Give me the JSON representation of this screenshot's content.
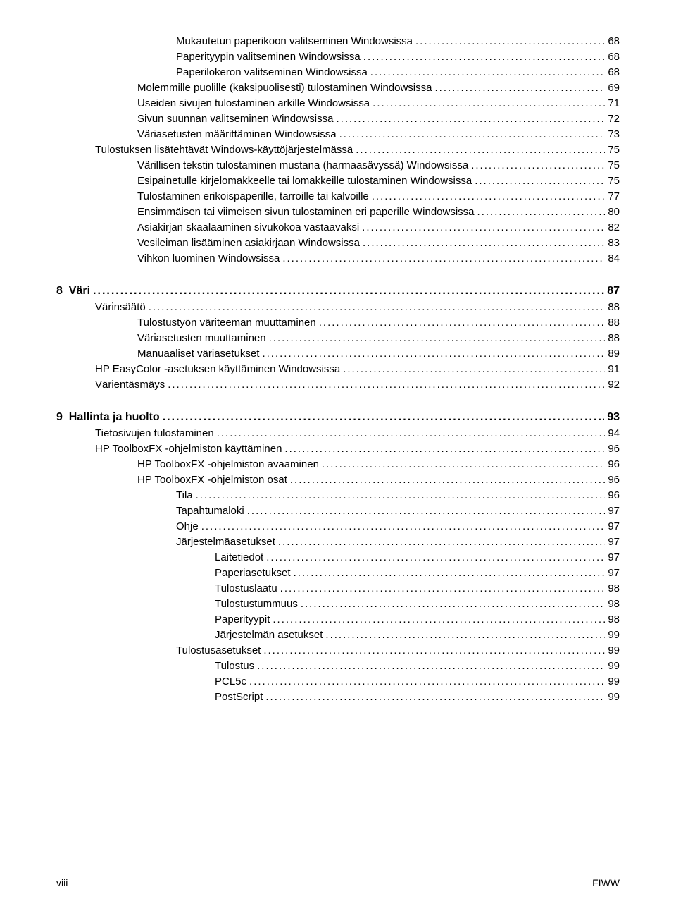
{
  "entries": [
    {
      "label": "Mukautetun paperikoon valitseminen Windowsissa",
      "page": "68",
      "indent": 3
    },
    {
      "label": "Paperityypin valitseminen Windowsissa",
      "page": "68",
      "indent": 3
    },
    {
      "label": "Paperilokeron valitseminen Windowsissa",
      "page": "68",
      "indent": 3
    },
    {
      "label": "Molemmille puolille (kaksipuolisesti) tulostaminen Windowsissa",
      "page": "69",
      "indent": 2
    },
    {
      "label": "Useiden sivujen tulostaminen arkille Windowsissa",
      "page": "71",
      "indent": 2
    },
    {
      "label": "Sivun suunnan valitseminen Windowsissa",
      "page": "72",
      "indent": 2
    },
    {
      "label": "Väriasetusten määrittäminen Windowsissa",
      "page": "73",
      "indent": 2
    },
    {
      "label": "Tulostuksen lisätehtävät Windows-käyttöjärjestelmässä",
      "page": "75",
      "indent": 1
    },
    {
      "label": "Värillisen tekstin tulostaminen mustana (harmaasävyssä) Windowsissa",
      "page": "75",
      "indent": 2
    },
    {
      "label": "Esipainetulle kirjelomakkeelle tai lomakkeille tulostaminen Windowsissa",
      "page": "75",
      "indent": 2
    },
    {
      "label": "Tulostaminen erikoispaperille, tarroille tai kalvoille",
      "page": "77",
      "indent": 2
    },
    {
      "label": "Ensimmäisen tai viimeisen sivun tulostaminen eri paperille Windowsissa",
      "page": "80",
      "indent": 2
    },
    {
      "label": "Asiakirjan skaalaaminen sivukokoa vastaavaksi",
      "page": "82",
      "indent": 2
    },
    {
      "label": "Vesileiman lisääminen asiakirjaan Windowsissa",
      "page": "83",
      "indent": 2
    },
    {
      "label": "Vihkon luominen Windowsissa",
      "page": "84",
      "indent": 2
    }
  ],
  "chapter8": {
    "number": "8",
    "title": "Väri",
    "page": "87"
  },
  "entries8": [
    {
      "label": "Värinsäätö",
      "page": "88",
      "indent": 1
    },
    {
      "label": "Tulostustyön väriteeman muuttaminen",
      "page": "88",
      "indent": 2
    },
    {
      "label": "Väriasetusten muuttaminen",
      "page": "88",
      "indent": 2
    },
    {
      "label": "Manuaaliset väriasetukset",
      "page": "89",
      "indent": 2
    },
    {
      "label": "HP EasyColor -asetuksen käyttäminen Windowsissa",
      "page": "91",
      "indent": 1
    },
    {
      "label": "Värientäsmäys",
      "page": "92",
      "indent": 1
    }
  ],
  "chapter9": {
    "number": "9",
    "title": "Hallinta ja huolto",
    "page": "93"
  },
  "entries9": [
    {
      "label": "Tietosivujen tulostaminen",
      "page": "94",
      "indent": 1
    },
    {
      "label": "HP ToolboxFX -ohjelmiston käyttäminen",
      "page": "96",
      "indent": 1
    },
    {
      "label": "HP ToolboxFX -ohjelmiston avaaminen",
      "page": "96",
      "indent": 2
    },
    {
      "label": "HP ToolboxFX -ohjelmiston osat",
      "page": "96",
      "indent": 2
    },
    {
      "label": "Tila",
      "page": "96",
      "indent": 3
    },
    {
      "label": "Tapahtumaloki",
      "page": "97",
      "indent": 3
    },
    {
      "label": "Ohje",
      "page": "97",
      "indent": 3
    },
    {
      "label": "Järjestelmäasetukset",
      "page": "97",
      "indent": 3
    },
    {
      "label": "Laitetiedot",
      "page": "97",
      "indent": 4
    },
    {
      "label": "Paperiasetukset",
      "page": "97",
      "indent": 4
    },
    {
      "label": "Tulostuslaatu",
      "page": "98",
      "indent": 4
    },
    {
      "label": "Tulostustummuus",
      "page": "98",
      "indent": 4
    },
    {
      "label": "Paperityypit",
      "page": "98",
      "indent": 4
    },
    {
      "label": "Järjestelmän asetukset",
      "page": "99",
      "indent": 4
    },
    {
      "label": "Tulostusasetukset",
      "page": "99",
      "indent": 3
    },
    {
      "label": "Tulostus",
      "page": "99",
      "indent": 4
    },
    {
      "label": "PCL5c",
      "page": "99",
      "indent": 4
    },
    {
      "label": "PostScript",
      "page": "99",
      "indent": 4
    }
  ],
  "footer": {
    "left": "viii",
    "right": "FIWW"
  }
}
